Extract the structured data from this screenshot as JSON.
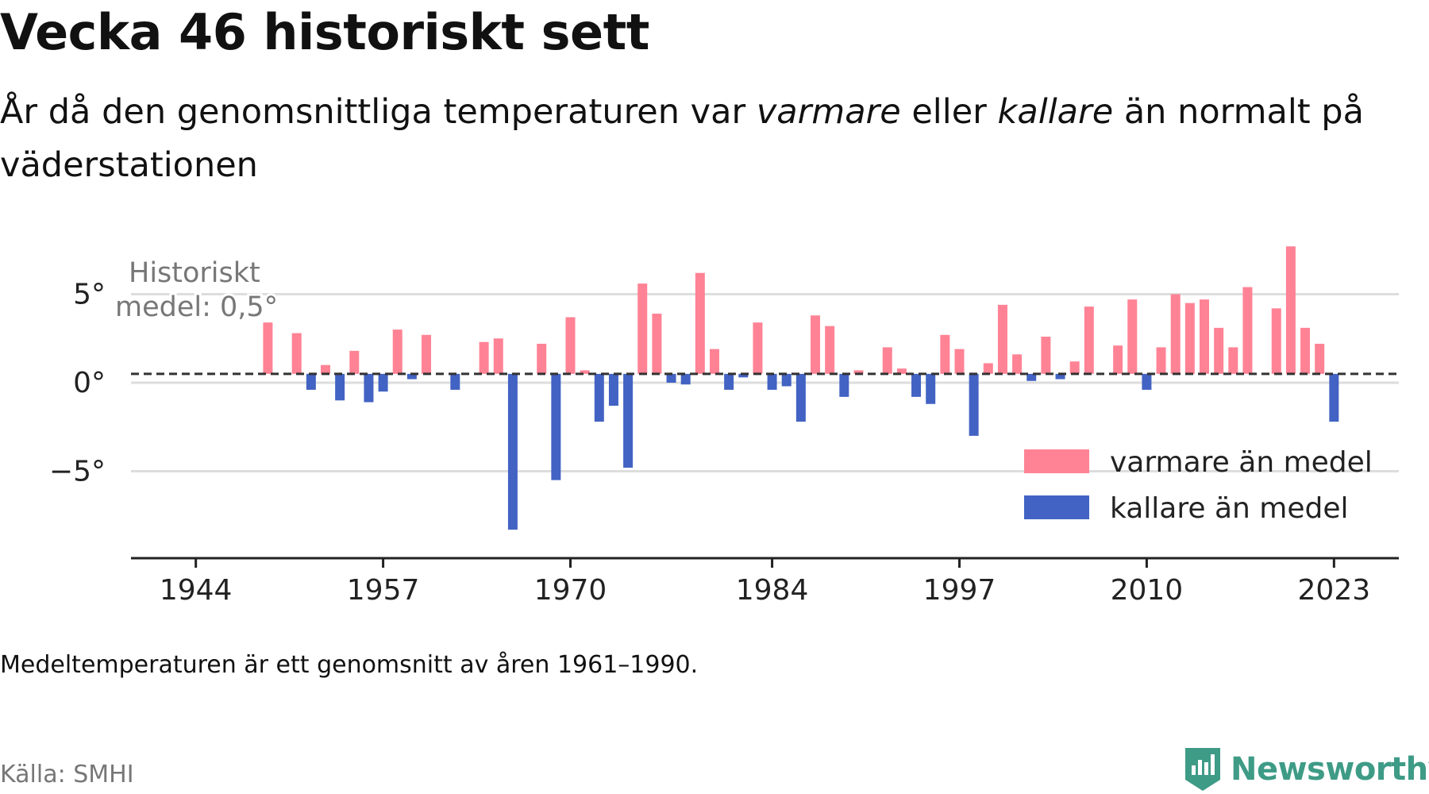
{
  "header": {
    "title": "Vecka 46 historiskt sett",
    "subtitle_pre": "År då den genomsnittliga temperaturen var ",
    "subtitle_warm": "varmare",
    "subtitle_mid": " eller ",
    "subtitle_cold": "kallare",
    "subtitle_post": " än normalt på väderstationen"
  },
  "footer": {
    "note": "Medeltemperaturen är ett genomsnitt av åren 1961–1990.",
    "source": "Källa: SMHI",
    "brand": "Newsworthy"
  },
  "colors": {
    "warm": "#ff8395",
    "cold": "#4263c3",
    "grid": "#dddddd",
    "axis": "#222222",
    "brand": "#3e9b86"
  },
  "chart_data": {
    "type": "bar",
    "baseline": 0.5,
    "baseline_label_line1": "Historiskt",
    "baseline_label_line2": "medel: 0,5°",
    "y_ticks": [
      {
        "value": 5,
        "label": "5°"
      },
      {
        "value": 0,
        "label": "0°"
      },
      {
        "value": -5,
        "label": "−5°"
      }
    ],
    "x_ticks": [
      1944,
      1957,
      1970,
      1984,
      1997,
      2010,
      2023
    ],
    "xlim": [
      1939.5,
      2027.5
    ],
    "ylim": [
      -10,
      10
    ],
    "legend": {
      "warm": "varmare än medel",
      "cold": "kallare än medel",
      "position": "bottom-right"
    },
    "years": [
      1949,
      1951,
      1952,
      1953,
      1954,
      1955,
      1956,
      1957,
      1958,
      1959,
      1960,
      1962,
      1964,
      1965,
      1966,
      1968,
      1969,
      1970,
      1971,
      1972,
      1973,
      1974,
      1975,
      1976,
      1977,
      1978,
      1979,
      1980,
      1981,
      1982,
      1983,
      1984,
      1985,
      1986,
      1987,
      1988,
      1989,
      1990,
      1992,
      1993,
      1994,
      1995,
      1996,
      1997,
      1998,
      1999,
      2000,
      2001,
      2002,
      2003,
      2004,
      2005,
      2006,
      2008,
      2009,
      2010,
      2011,
      2012,
      2013,
      2014,
      2015,
      2016,
      2017,
      2019,
      2020,
      2021,
      2022,
      2023
    ],
    "values": [
      3.4,
      2.8,
      -0.4,
      1.0,
      -1.0,
      1.8,
      -1.1,
      -0.5,
      3.0,
      0.2,
      2.7,
      -0.4,
      2.3,
      2.5,
      -8.3,
      2.2,
      -5.5,
      3.7,
      0.7,
      -2.2,
      -1.3,
      -4.8,
      5.6,
      3.9,
      0.0,
      -0.1,
      6.2,
      1.9,
      -0.4,
      0.3,
      3.4,
      -0.4,
      -0.2,
      -2.2,
      3.8,
      3.2,
      -0.8,
      0.7,
      2.0,
      0.8,
      -0.8,
      -1.2,
      2.7,
      1.9,
      -3.0,
      1.1,
      4.4,
      1.6,
      0.1,
      2.6,
      0.2,
      1.2,
      4.3,
      2.1,
      4.7,
      -0.4,
      2.0,
      5.0,
      4.5,
      4.7,
      3.1,
      2.0,
      5.4,
      4.2,
      7.7,
      3.1,
      2.2,
      -2.2
    ]
  }
}
